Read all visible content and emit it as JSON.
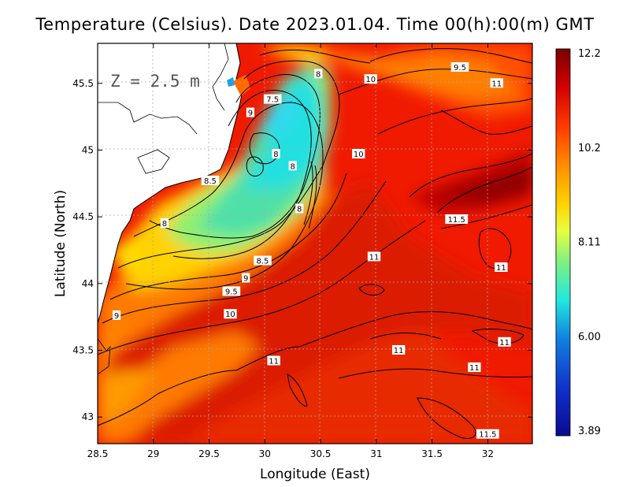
{
  "title": "Temperature (Celsius). Date 2023.01.04. Time 00(h):00(m) GMT",
  "depth_label": "Z = 2.5 m",
  "x_axis": {
    "label": "Longitude (East)",
    "range": [
      28.5,
      32.4
    ],
    "ticks": [
      "28.5",
      "29",
      "29.5",
      "30",
      "30.5",
      "31",
      "31.5",
      "32"
    ]
  },
  "y_axis": {
    "label": "Latitude (North)",
    "range": [
      42.8,
      45.8
    ],
    "ticks": [
      "43",
      "43.5",
      "44",
      "44.5",
      "45",
      "45.5"
    ]
  },
  "colorbar": {
    "ticks": [
      "12.2",
      "10.2",
      "8.11",
      "6.00",
      "3.89"
    ],
    "colors": [
      "#7a0000",
      "#d40000",
      "#ff3a00",
      "#ff8c00",
      "#ffd200",
      "#e8ff40",
      "#80f080",
      "#20e8e0",
      "#1080e0",
      "#1030c8",
      "#0a0a90"
    ]
  },
  "contour_labels": [
    {
      "text": "9.5",
      "lon": 31.75,
      "lat": 45.62
    },
    {
      "text": "10",
      "lon": 30.95,
      "lat": 45.53
    },
    {
      "text": "11",
      "lon": 32.08,
      "lat": 45.5
    },
    {
      "text": "8",
      "lon": 30.48,
      "lat": 45.57
    },
    {
      "text": "7.5",
      "lon": 30.07,
      "lat": 45.38
    },
    {
      "text": "9",
      "lon": 29.87,
      "lat": 45.28
    },
    {
      "text": "8",
      "lon": 30.1,
      "lat": 44.97
    },
    {
      "text": "10",
      "lon": 30.84,
      "lat": 44.97
    },
    {
      "text": "8",
      "lon": 30.25,
      "lat": 44.88
    },
    {
      "text": "8.5",
      "lon": 29.51,
      "lat": 44.77
    },
    {
      "text": "8",
      "lon": 30.31,
      "lat": 44.56
    },
    {
      "text": "11.5",
      "lon": 31.72,
      "lat": 44.48
    },
    {
      "text": "8",
      "lon": 29.1,
      "lat": 44.45
    },
    {
      "text": "11",
      "lon": 30.98,
      "lat": 44.2
    },
    {
      "text": "8.5",
      "lon": 29.98,
      "lat": 44.17
    },
    {
      "text": "11",
      "lon": 32.12,
      "lat": 44.12
    },
    {
      "text": "9",
      "lon": 29.83,
      "lat": 44.04
    },
    {
      "text": "9.5",
      "lon": 29.7,
      "lat": 43.94
    },
    {
      "text": "10",
      "lon": 29.69,
      "lat": 43.77
    },
    {
      "text": "9",
      "lon": 28.67,
      "lat": 43.76
    },
    {
      "text": "11",
      "lon": 32.15,
      "lat": 43.56
    },
    {
      "text": "11",
      "lon": 31.2,
      "lat": 43.5
    },
    {
      "text": "11",
      "lon": 30.08,
      "lat": 43.42
    },
    {
      "text": "11",
      "lon": 31.88,
      "lat": 43.37
    },
    {
      "text": "11.5",
      "lon": 32.0,
      "lat": 42.87
    }
  ]
}
